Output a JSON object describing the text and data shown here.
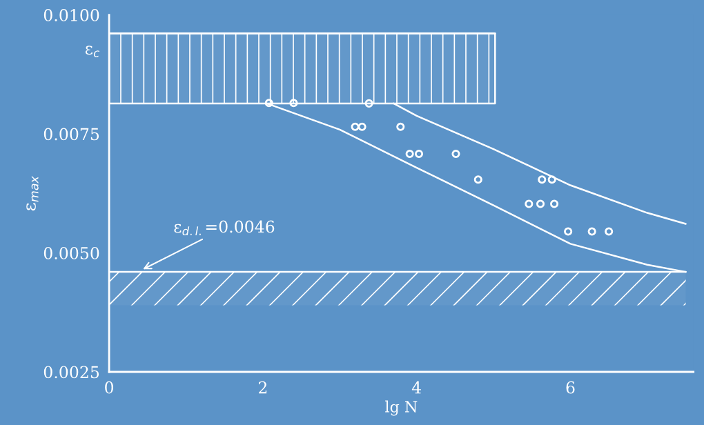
{
  "chart_data": {
    "type": "scatter",
    "xlabel": "lg N",
    "ylabel": "ε$_{max}$",
    "xlim": [
      0,
      7.6
    ],
    "xticks": [
      0,
      2,
      4,
      6
    ],
    "ylim": [
      0.0025,
      0.01
    ],
    "yticks": [
      {
        "value": 0.0025,
        "label": "0.0025"
      },
      {
        "value": 0.005,
        "label": "0.0050"
      },
      {
        "value": 0.0075,
        "label": "0.0075"
      },
      {
        "value": 0.0093,
        "label": "ε$_{c}$"
      },
      {
        "value": 0.01,
        "label": "0.0100"
      }
    ],
    "grid": false,
    "series": [
      {
        "marker": "circle",
        "color": "#ffffff",
        "x": [
          2.08,
          2.4,
          3.38,
          3.2,
          3.29,
          3.79,
          3.91,
          4.03,
          4.51,
          4.8,
          5.46,
          5.61,
          5.79,
          5.63,
          5.76,
          5.97,
          6.28,
          6.5
        ],
        "values": [
          0.00815,
          0.00815,
          0.00814,
          0.00765,
          0.00765,
          0.00765,
          0.00708,
          0.00708,
          0.00708,
          0.00654,
          0.00603,
          0.00603,
          0.00603,
          0.00654,
          0.00654,
          0.00545,
          0.00545,
          0.00545
        ]
      },
      {
        "type": "line",
        "color": "#ffffff",
        "x": [
          2.05,
          3,
          4,
          5,
          6,
          7,
          7.5
        ],
        "values": [
          0.00814,
          0.00759,
          0.00679,
          0.006,
          0.00519,
          0.00475,
          0.0046
        ]
      },
      {
        "type": "line",
        "color": "#ffffff",
        "x": [
          3.7,
          4,
          5,
          6,
          7,
          7.5
        ],
        "values": [
          0.00814,
          0.00788,
          0.00718,
          0.00642,
          0.00584,
          0.00561
        ]
      },
      {
        "type": "line",
        "color": "#ffffff",
        "x": [
          0,
          5.02
        ],
        "values": [
          0.00961,
          0.00961
        ],
        "lower": [
          0.00814,
          0.00814
        ],
        "upper": [
          0.00961,
          0.00961
        ]
      },
      {
        "type": "line",
        "color": "#ffffff",
        "x": [
          0,
          7.5
        ],
        "values": [
          0.0046,
          0.0046
        ],
        "lower": [
          0.0039,
          0.0039
        ],
        "upper": [
          0.0046,
          0.0046
        ]
      }
    ],
    "annotations": [
      "ε$_{d.l.}$=0.0046"
    ]
  }
}
